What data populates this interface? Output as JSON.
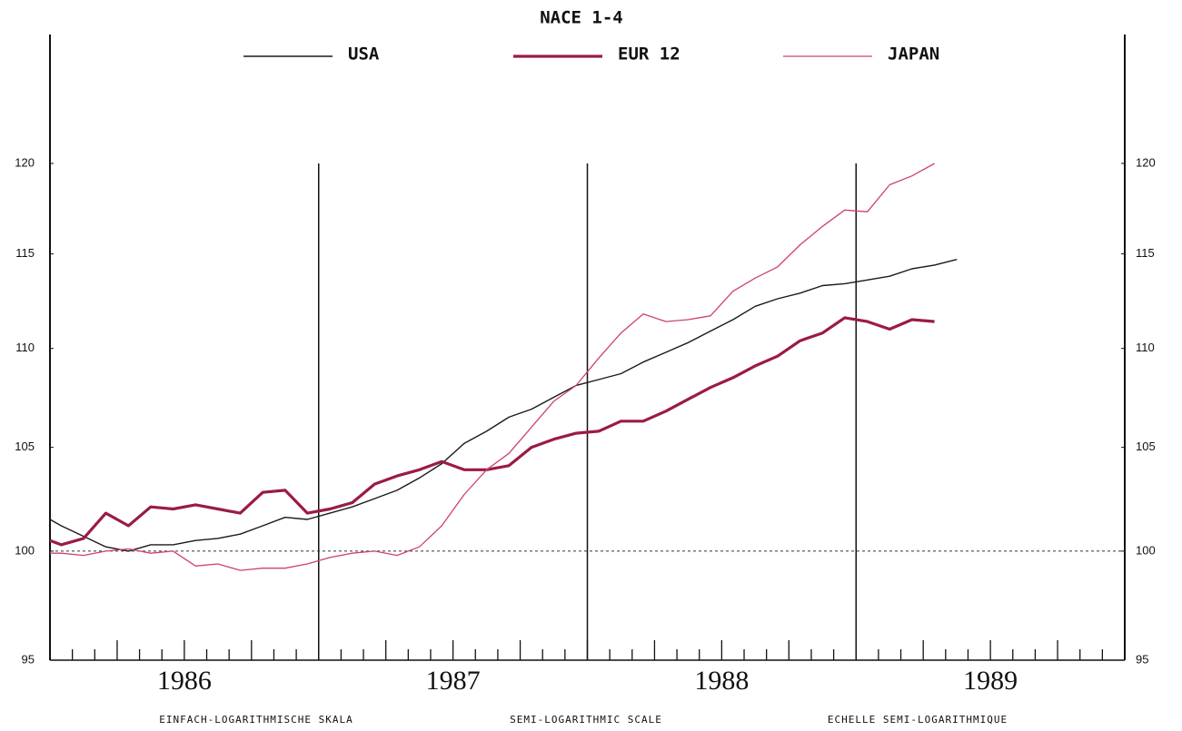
{
  "chart_data": {
    "type": "line",
    "title": "NACE 1-4",
    "footer": [
      "EINFACH-LOGARITHMISCHE SKALA",
      "SEMI-LOGARITHMIC SCALE",
      "ECHELLE SEMI-LOGARITHMIQUE"
    ],
    "log_scale": true,
    "reference_line": 100,
    "x": [
      1986.0,
      1986.042,
      1986.125,
      1986.208,
      1986.292,
      1986.375,
      1986.458,
      1986.542,
      1986.625,
      1986.708,
      1986.792,
      1986.875,
      1986.958,
      1987.042,
      1987.125,
      1987.208,
      1987.292,
      1987.375,
      1987.458,
      1987.542,
      1987.625,
      1987.708,
      1987.792,
      1987.875,
      1987.958,
      1988.042,
      1988.125,
      1988.208,
      1988.292,
      1988.375,
      1988.458,
      1988.542,
      1988.625,
      1988.708,
      1988.792,
      1988.875,
      1988.958,
      1989.042,
      1989.125,
      1989.208,
      1989.292,
      1989.375
    ],
    "xlim": [
      1986,
      1990
    ],
    "xticks": [
      {
        "value": 1986,
        "label": "1986"
      },
      {
        "value": 1987,
        "label": "1987"
      },
      {
        "value": 1988,
        "label": "1988"
      },
      {
        "value": 1989,
        "label": "1989"
      }
    ],
    "ylim": [
      95,
      127.5
    ],
    "yticks": [
      95,
      100,
      105,
      110,
      115,
      120
    ],
    "series": [
      {
        "name": "USA",
        "color": "#1a1a1a",
        "width": 1.4,
        "values": [
          101.5,
          101.2,
          100.7,
          100.2,
          100.0,
          100.3,
          100.3,
          100.5,
          100.6,
          100.8,
          101.2,
          101.6,
          101.5,
          101.8,
          102.1,
          102.5,
          102.9,
          103.5,
          104.2,
          105.2,
          105.8,
          106.5,
          106.9,
          107.5,
          108.1,
          108.4,
          108.7,
          109.3,
          109.8,
          110.3,
          110.9,
          111.5,
          112.2,
          112.6,
          112.9,
          113.3,
          113.4,
          113.6,
          113.8,
          114.2,
          114.4,
          114.7
        ]
      },
      {
        "name": "EUR 12",
        "color": "#9b1b45",
        "width": 3.2,
        "values": [
          100.5,
          100.3,
          100.6,
          101.8,
          101.2,
          102.1,
          102.0,
          102.2,
          102.0,
          101.8,
          102.8,
          102.9,
          101.8,
          102.0,
          102.3,
          103.2,
          103.6,
          103.9,
          104.3,
          103.9,
          103.9,
          104.1,
          105.0,
          105.4,
          105.7,
          105.8,
          106.3,
          106.3,
          106.8,
          107.4,
          108.0,
          108.5,
          109.1,
          109.6,
          110.4,
          110.8,
          111.6,
          111.4,
          111.0,
          111.5,
          111.4,
          null
        ]
      },
      {
        "name": "JAPAN",
        "color": "#cc4466",
        "width": 1.3,
        "values": [
          99.9,
          99.9,
          99.8,
          100.0,
          100.1,
          99.9,
          100.0,
          99.3,
          99.4,
          99.1,
          99.2,
          99.2,
          99.4,
          99.7,
          99.9,
          100.0,
          99.8,
          100.2,
          101.2,
          102.7,
          103.9,
          104.7,
          106.0,
          107.3,
          108.1,
          109.5,
          110.8,
          111.8,
          111.4,
          111.5,
          111.7,
          113.0,
          113.7,
          114.3,
          115.5,
          116.5,
          117.4,
          117.3,
          118.8,
          119.3,
          120.0,
          null
        ]
      }
    ]
  }
}
